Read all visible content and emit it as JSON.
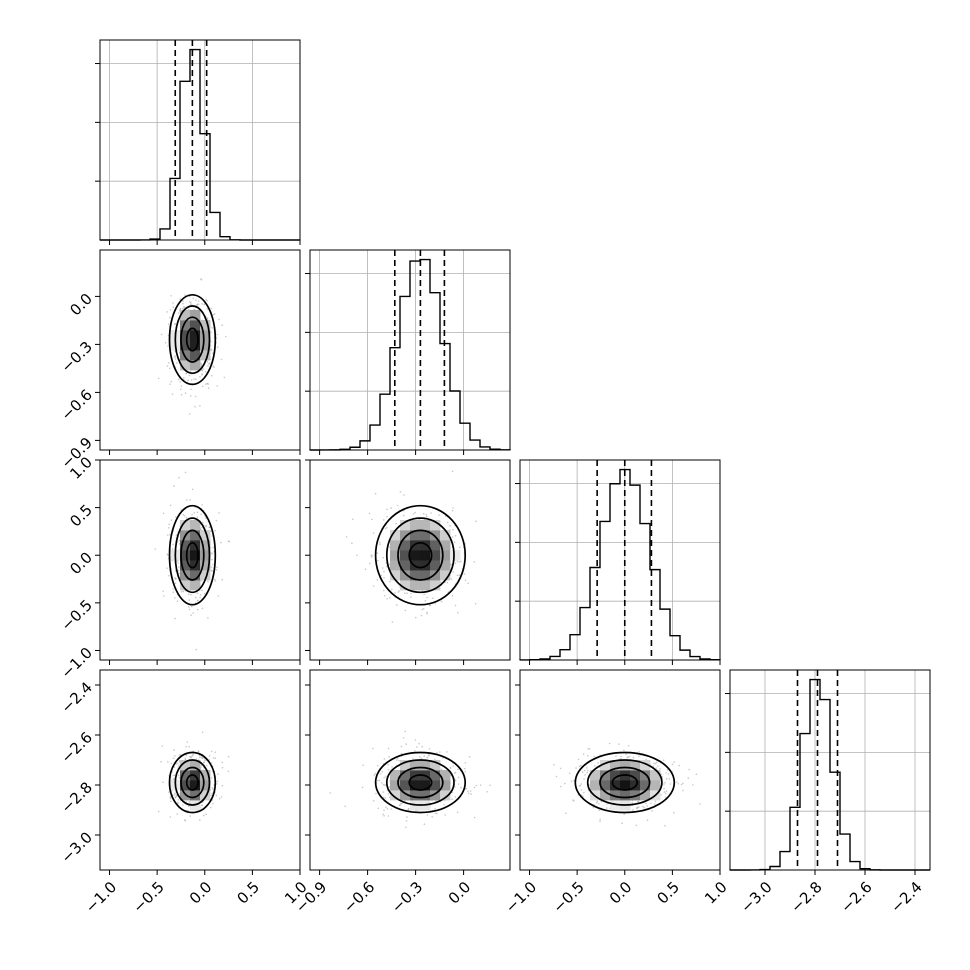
{
  "chart_data": {
    "type": "corner",
    "title": "",
    "parameters": [
      {
        "range": [
          -1.1,
          1.0
        ],
        "ticks": [
          -1.0,
          -0.5,
          0.0,
          0.5,
          1.0
        ],
        "tick_labels": [
          "−1.0",
          "−0.5",
          "0.0",
          "0.5",
          "1.0"
        ]
      },
      {
        "range": [
          -0.96,
          0.29
        ],
        "ticks": [
          -0.9,
          -0.6,
          -0.3,
          0.0
        ],
        "tick_labels": [
          "−0.9",
          "−0.6",
          "−0.3",
          "0.0"
        ]
      },
      {
        "range": [
          -1.1,
          1.0
        ],
        "ticks": [
          -1.0,
          -0.5,
          0.0,
          0.5,
          1.0
        ],
        "tick_labels": [
          "−1.0",
          "−0.5",
          "0.0",
          "0.5",
          "1.0"
        ]
      },
      {
        "range": [
          -3.14,
          -2.34
        ],
        "ticks": [
          -3.0,
          -2.8,
          -2.6,
          -2.4
        ],
        "tick_labels": [
          "−3.0",
          "−2.8",
          "−2.6",
          "−2.4"
        ]
      }
    ],
    "marginals": [
      {
        "mean": -0.13,
        "sd": 0.12,
        "quantiles": [
          -0.31,
          -0.13,
          0.02
        ],
        "bins": 20
      },
      {
        "mean": -0.27,
        "sd": 0.14,
        "quantiles": [
          -0.43,
          -0.27,
          -0.12
        ],
        "bins": 20
      },
      {
        "mean": 0.0,
        "sd": 0.26,
        "quantiles": [
          -0.29,
          0.0,
          0.28
        ],
        "bins": 20
      },
      {
        "mean": -2.79,
        "sd": 0.06,
        "quantiles": [
          -2.87,
          -2.79,
          -2.71
        ],
        "bins": 20
      }
    ],
    "grid": true,
    "quantile_lines": "dashed",
    "contour_levels": 4
  }
}
